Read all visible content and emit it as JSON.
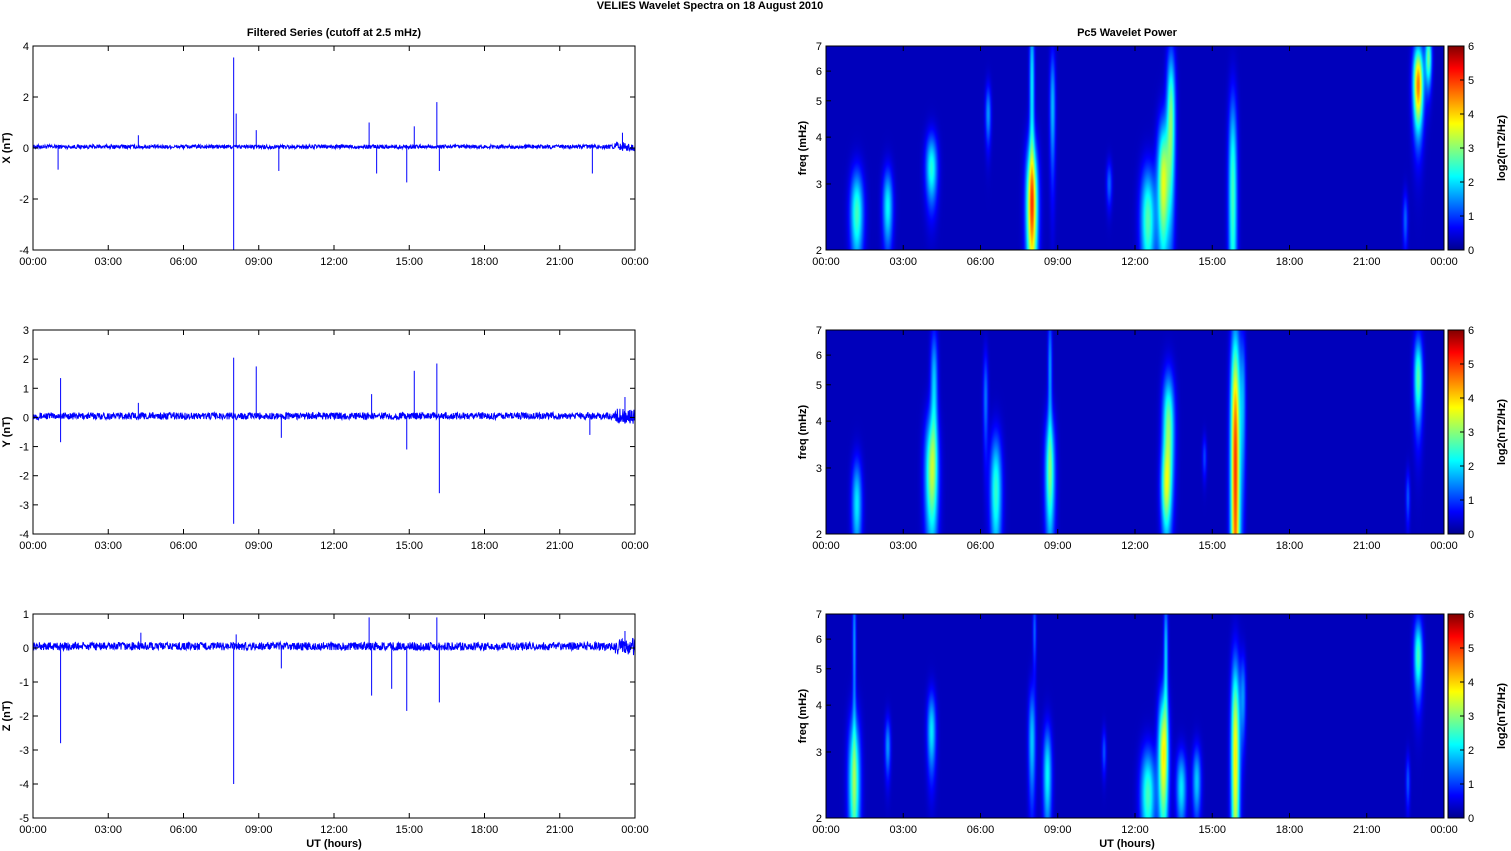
{
  "figure": {
    "suptitle": "VELIES Wavelet Spectra on 18 August    2010",
    "left_title": "Filtered Series (cutoff at 2.5 mHz)",
    "right_title": "Pc5 Wavelet Power",
    "xlabel": "UT (hours)"
  },
  "colors": {
    "trace": "#0000ff",
    "wavelet_background": "#00008f",
    "colormap": "jet"
  },
  "chart_data": [
    {
      "type": "line",
      "ylabel": "X (nT)",
      "x_ticks": [
        "00:00",
        "03:00",
        "06:00",
        "09:00",
        "12:00",
        "15:00",
        "18:00",
        "21:00",
        "00:00"
      ],
      "xlim_hours": [
        0,
        24
      ],
      "ylim": [
        -4,
        4
      ],
      "y_ticks": [
        -4,
        -2,
        0,
        2,
        4
      ],
      "noise_amplitude": 0.08,
      "spikes": [
        {
          "t": 1.0,
          "y": -0.85
        },
        {
          "t": 4.2,
          "y": 0.5
        },
        {
          "t": 8.0,
          "y": 3.55
        },
        {
          "t": 8.0,
          "y": -4.0
        },
        {
          "t": 8.1,
          "y": 1.35
        },
        {
          "t": 8.9,
          "y": 0.7
        },
        {
          "t": 9.8,
          "y": -0.9
        },
        {
          "t": 13.4,
          "y": 1.0
        },
        {
          "t": 13.7,
          "y": -1.0
        },
        {
          "t": 14.9,
          "y": -1.35
        },
        {
          "t": 15.2,
          "y": 0.85
        },
        {
          "t": 16.1,
          "y": 1.8
        },
        {
          "t": 16.2,
          "y": -0.9
        },
        {
          "t": 22.3,
          "y": -1.0
        },
        {
          "t": 23.5,
          "y": 0.6
        }
      ]
    },
    {
      "type": "line",
      "ylabel": "Y (nT)",
      "x_ticks": [
        "00:00",
        "03:00",
        "06:00",
        "09:00",
        "12:00",
        "15:00",
        "18:00",
        "21:00",
        "00:00"
      ],
      "xlim_hours": [
        0,
        24
      ],
      "ylim": [
        -4,
        3
      ],
      "y_ticks": [
        -4,
        -3,
        -2,
        -1,
        0,
        1,
        2,
        3
      ],
      "noise_amplitude": 0.12,
      "spikes": [
        {
          "t": 1.1,
          "y": 1.35
        },
        {
          "t": 1.1,
          "y": -0.85
        },
        {
          "t": 4.2,
          "y": 0.5
        },
        {
          "t": 8.0,
          "y": 2.05
        },
        {
          "t": 8.0,
          "y": -3.65
        },
        {
          "t": 8.9,
          "y": 1.75
        },
        {
          "t": 9.9,
          "y": -0.7
        },
        {
          "t": 13.5,
          "y": 0.8
        },
        {
          "t": 14.9,
          "y": -1.1
        },
        {
          "t": 15.2,
          "y": 1.6
        },
        {
          "t": 16.1,
          "y": 1.85
        },
        {
          "t": 16.2,
          "y": -2.6
        },
        {
          "t": 22.2,
          "y": -0.6
        },
        {
          "t": 23.6,
          "y": 0.7
        }
      ]
    },
    {
      "type": "line",
      "ylabel": "Z (nT)",
      "x_ticks": [
        "00:00",
        "03:00",
        "06:00",
        "09:00",
        "12:00",
        "15:00",
        "18:00",
        "21:00",
        "00:00"
      ],
      "xlim_hours": [
        0,
        24
      ],
      "ylim": [
        -5,
        1
      ],
      "y_ticks": [
        -5,
        -4,
        -3,
        -2,
        -1,
        0,
        1
      ],
      "noise_amplitude": 0.12,
      "spikes": [
        {
          "t": 1.1,
          "y": -2.8
        },
        {
          "t": 4.3,
          "y": 0.45
        },
        {
          "t": 8.0,
          "y": -4.0
        },
        {
          "t": 8.1,
          "y": 0.4
        },
        {
          "t": 9.9,
          "y": -0.6
        },
        {
          "t": 13.4,
          "y": 0.9
        },
        {
          "t": 13.5,
          "y": -1.4
        },
        {
          "t": 14.3,
          "y": -1.2
        },
        {
          "t": 14.9,
          "y": -1.85
        },
        {
          "t": 16.1,
          "y": 0.9
        },
        {
          "t": 16.2,
          "y": -1.6
        },
        {
          "t": 23.6,
          "y": 0.5
        }
      ]
    },
    {
      "type": "heatmap",
      "ylabel": "freq (mHz)",
      "yscale": "log",
      "ylim_mHz": [
        2,
        7
      ],
      "y_ticks": [
        2,
        3,
        4,
        5,
        6,
        7
      ],
      "x_ticks": [
        "00:00",
        "03:00",
        "06:00",
        "09:00",
        "12:00",
        "15:00",
        "18:00",
        "21:00",
        "00:00"
      ],
      "xlim_hours": [
        0,
        24
      ],
      "colorbar": {
        "label": "log2(nT2/Hz)",
        "range": [
          0,
          6
        ],
        "ticks": [
          0,
          1,
          2,
          3,
          4,
          5,
          6
        ]
      },
      "blobs": [
        {
          "t": 1.2,
          "f": 2.5,
          "dt": 0.18,
          "df": 0.5,
          "p": 2.3
        },
        {
          "t": 2.4,
          "f": 2.6,
          "dt": 0.14,
          "df": 0.45,
          "p": 1.9
        },
        {
          "t": 4.1,
          "f": 3.3,
          "dt": 0.16,
          "df": 0.5,
          "p": 2.1
        },
        {
          "t": 8.0,
          "f": 2.6,
          "dt": 0.16,
          "df": 0.8,
          "p": 4.0
        },
        {
          "t": 8.0,
          "f": 5.5,
          "dt": 0.07,
          "df": 2.0,
          "p": 1.8
        },
        {
          "t": 8.8,
          "f": 4.8,
          "dt": 0.08,
          "df": 1.3,
          "p": 1.5
        },
        {
          "t": 6.3,
          "f": 4.6,
          "dt": 0.08,
          "df": 0.6,
          "p": 1.3
        },
        {
          "t": 12.5,
          "f": 2.4,
          "dt": 0.2,
          "df": 0.6,
          "p": 2.4
        },
        {
          "t": 13.1,
          "f": 3.0,
          "dt": 0.16,
          "df": 0.9,
          "p": 3.2
        },
        {
          "t": 13.4,
          "f": 4.5,
          "dt": 0.12,
          "df": 1.5,
          "p": 2.6
        },
        {
          "t": 11.0,
          "f": 3.0,
          "dt": 0.08,
          "df": 0.3,
          "p": 1.0
        },
        {
          "t": 15.8,
          "f": 2.8,
          "dt": 0.12,
          "df": 1.5,
          "p": 2.3
        },
        {
          "t": 23.0,
          "f": 5.5,
          "dt": 0.14,
          "df": 1.0,
          "p": 4.2
        },
        {
          "t": 22.5,
          "f": 2.4,
          "dt": 0.07,
          "df": 0.3,
          "p": 1.0
        },
        {
          "t": 23.4,
          "f": 6.5,
          "dt": 0.09,
          "df": 0.8,
          "p": 2.5
        }
      ]
    },
    {
      "type": "heatmap",
      "ylabel": "freq (mHz)",
      "yscale": "log",
      "ylim_mHz": [
        2,
        7
      ],
      "y_ticks": [
        2,
        3,
        4,
        5,
        6,
        7
      ],
      "x_ticks": [
        "00:00",
        "03:00",
        "06:00",
        "09:00",
        "12:00",
        "15:00",
        "18:00",
        "21:00",
        "00:00"
      ],
      "xlim_hours": [
        0,
        24
      ],
      "colorbar": {
        "label": "log2(nT2/Hz)",
        "range": [
          0,
          6
        ],
        "ticks": [
          0,
          1,
          2,
          3,
          4,
          5,
          6
        ]
      },
      "blobs": [
        {
          "t": 1.2,
          "f": 2.4,
          "dt": 0.14,
          "df": 0.5,
          "p": 1.8
        },
        {
          "t": 4.1,
          "f": 2.9,
          "dt": 0.18,
          "df": 0.8,
          "p": 2.8
        },
        {
          "t": 4.2,
          "f": 5.0,
          "dt": 0.1,
          "df": 1.3,
          "p": 1.6
        },
        {
          "t": 6.6,
          "f": 2.6,
          "dt": 0.16,
          "df": 0.7,
          "p": 2.2
        },
        {
          "t": 6.2,
          "f": 4.6,
          "dt": 0.07,
          "df": 1.0,
          "p": 1.1
        },
        {
          "t": 8.7,
          "f": 2.9,
          "dt": 0.14,
          "df": 0.8,
          "p": 2.4
        },
        {
          "t": 8.7,
          "f": 5.5,
          "dt": 0.06,
          "df": 1.5,
          "p": 1.3
        },
        {
          "t": 13.3,
          "f": 3.8,
          "dt": 0.16,
          "df": 1.0,
          "p": 2.7
        },
        {
          "t": 13.2,
          "f": 2.6,
          "dt": 0.14,
          "df": 0.5,
          "p": 2.1
        },
        {
          "t": 15.9,
          "f": 3.0,
          "dt": 0.13,
          "df": 2.5,
          "p": 4.6
        },
        {
          "t": 16.2,
          "f": 4.5,
          "dt": 0.08,
          "df": 1.5,
          "p": 1.2
        },
        {
          "t": 23.0,
          "f": 5.2,
          "dt": 0.12,
          "df": 1.0,
          "p": 2.4
        },
        {
          "t": 22.6,
          "f": 2.5,
          "dt": 0.06,
          "df": 0.3,
          "p": 0.9
        },
        {
          "t": 14.7,
          "f": 3.2,
          "dt": 0.06,
          "df": 0.3,
          "p": 0.8
        }
      ]
    },
    {
      "type": "heatmap",
      "ylabel": "freq (mHz)",
      "yscale": "log",
      "ylim_mHz": [
        2,
        7
      ],
      "y_ticks": [
        2,
        3,
        4,
        5,
        6,
        7
      ],
      "x_ticks": [
        "00:00",
        "03:00",
        "06:00",
        "09:00",
        "12:00",
        "15:00",
        "18:00",
        "21:00",
        "00:00"
      ],
      "xlim_hours": [
        0,
        24
      ],
      "colorbar": {
        "label": "log2(nT2/Hz)",
        "range": [
          0,
          6
        ],
        "ticks": [
          0,
          1,
          2,
          3,
          4,
          5,
          6
        ]
      },
      "blobs": [
        {
          "t": 1.1,
          "f": 2.5,
          "dt": 0.16,
          "df": 0.8,
          "p": 2.6
        },
        {
          "t": 1.1,
          "f": 5.8,
          "dt": 0.05,
          "df": 2.0,
          "p": 1.3
        },
        {
          "t": 2.4,
          "f": 3.1,
          "dt": 0.08,
          "df": 0.4,
          "p": 1.3
        },
        {
          "t": 4.1,
          "f": 3.4,
          "dt": 0.12,
          "df": 0.6,
          "p": 1.8
        },
        {
          "t": 8.0,
          "f": 3.2,
          "dt": 0.1,
          "df": 0.8,
          "p": 1.6
        },
        {
          "t": 8.6,
          "f": 2.6,
          "dt": 0.12,
          "df": 0.6,
          "p": 1.9
        },
        {
          "t": 8.1,
          "f": 6.3,
          "dt": 0.05,
          "df": 1.0,
          "p": 1.0
        },
        {
          "t": 12.5,
          "f": 2.3,
          "dt": 0.2,
          "df": 0.5,
          "p": 2.3
        },
        {
          "t": 13.1,
          "f": 2.9,
          "dt": 0.14,
          "df": 0.9,
          "p": 3.4
        },
        {
          "t": 13.8,
          "f": 2.4,
          "dt": 0.14,
          "df": 0.4,
          "p": 1.8
        },
        {
          "t": 14.4,
          "f": 2.5,
          "dt": 0.12,
          "df": 0.4,
          "p": 1.6
        },
        {
          "t": 13.2,
          "f": 5.5,
          "dt": 0.06,
          "df": 1.5,
          "p": 1.6
        },
        {
          "t": 15.9,
          "f": 2.9,
          "dt": 0.12,
          "df": 1.5,
          "p": 3.5
        },
        {
          "t": 16.2,
          "f": 4.2,
          "dt": 0.08,
          "df": 0.8,
          "p": 1.2
        },
        {
          "t": 23.0,
          "f": 5.4,
          "dt": 0.12,
          "df": 0.9,
          "p": 2.3
        },
        {
          "t": 22.6,
          "f": 2.5,
          "dt": 0.06,
          "df": 0.3,
          "p": 0.9
        },
        {
          "t": 10.8,
          "f": 3.0,
          "dt": 0.06,
          "df": 0.3,
          "p": 0.9
        }
      ]
    }
  ]
}
